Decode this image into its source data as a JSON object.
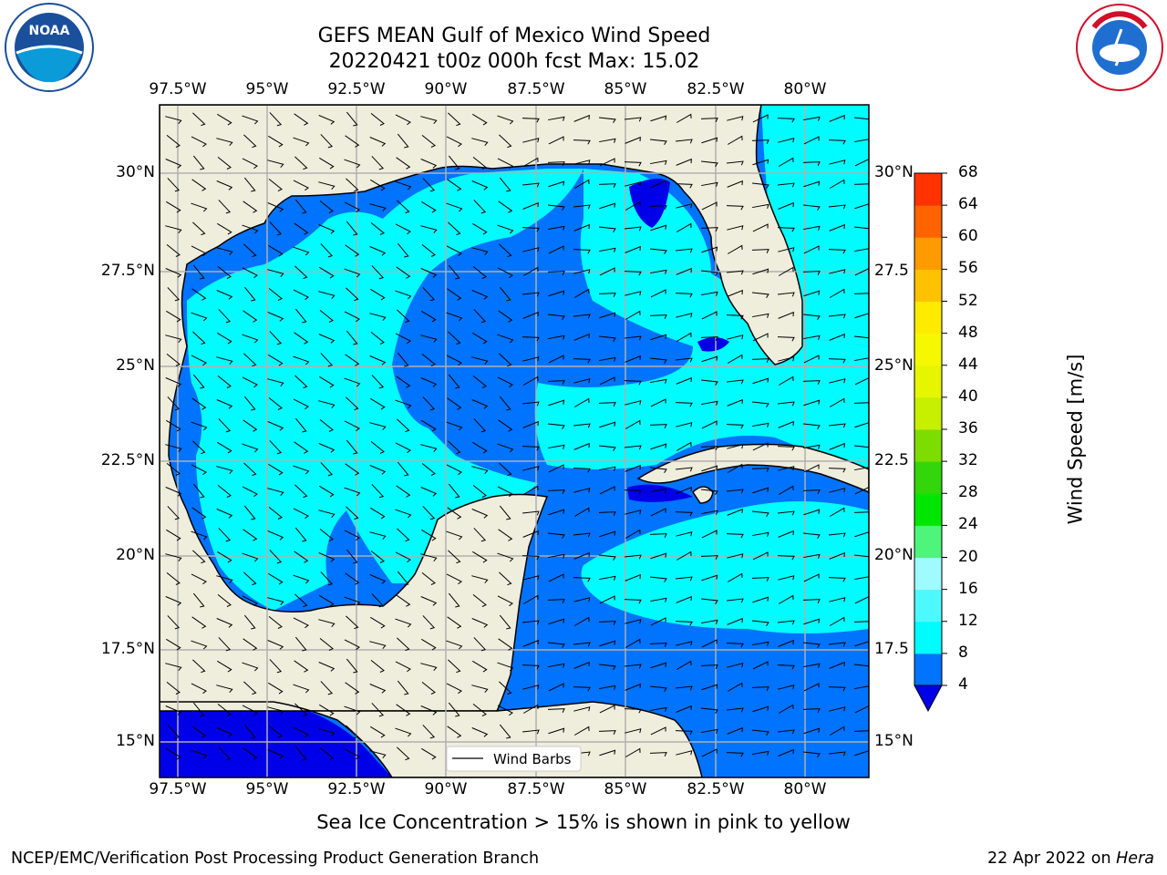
{
  "title": {
    "line1": "GEFS MEAN Gulf of Mexico Wind Speed",
    "line2": "20220421 t00z 000h fcst   Max: 15.02"
  },
  "axes": {
    "lon_labels": [
      "97.5°W",
      "95°W",
      "92.5°W",
      "90°W",
      "87.5°W",
      "85°W",
      "82.5°W",
      "80°W"
    ],
    "lat_labels_left": [
      "30°N",
      "27.5°N",
      "25°N",
      "22.5°N",
      "20°N",
      "17.5°N",
      "15°N"
    ],
    "lat_labels_right": [
      "30°N",
      "27.5",
      "25°N",
      "22.5",
      "20°N",
      "17.5",
      "15°N"
    ]
  },
  "legend": {
    "wind_barbs": "Wind Barbs"
  },
  "colorbar": {
    "label": "Wind Speed [m/s]",
    "ticks": [
      "4",
      "8",
      "12",
      "16",
      "20",
      "24",
      "28",
      "32",
      "36",
      "40",
      "44",
      "48",
      "52",
      "56",
      "60",
      "64",
      "68"
    ],
    "colors": [
      "#0073ff",
      "#00fcff",
      "#4df9ff",
      "#9ffbff",
      "#4ff47a",
      "#00e600",
      "#32d60b",
      "#7ddc00",
      "#c7ef00",
      "#e6f500",
      "#f5f800",
      "#ffeb00",
      "#ffc200",
      "#ff9a00",
      "#ff6400",
      "#ff3200"
    ],
    "under_color": "#0000e8"
  },
  "colors": {
    "land": "#efeddc",
    "ocean_light": "#00fcff",
    "ocean_mid": "#0073ff",
    "ocean_dark": "#0000e8",
    "grid": "#b0b0b0"
  },
  "caption": "Sea Ice Concentration > 15% is shown in pink to yellow",
  "footer": {
    "org": "NCEP/EMC/Verification Post Processing Product Generation Branch",
    "date": "22 Apr 2022 on",
    "host": "Hera"
  },
  "logos": {
    "noaa": "NOAA",
    "nws": "NATIONAL WEATHER SERVICE"
  }
}
